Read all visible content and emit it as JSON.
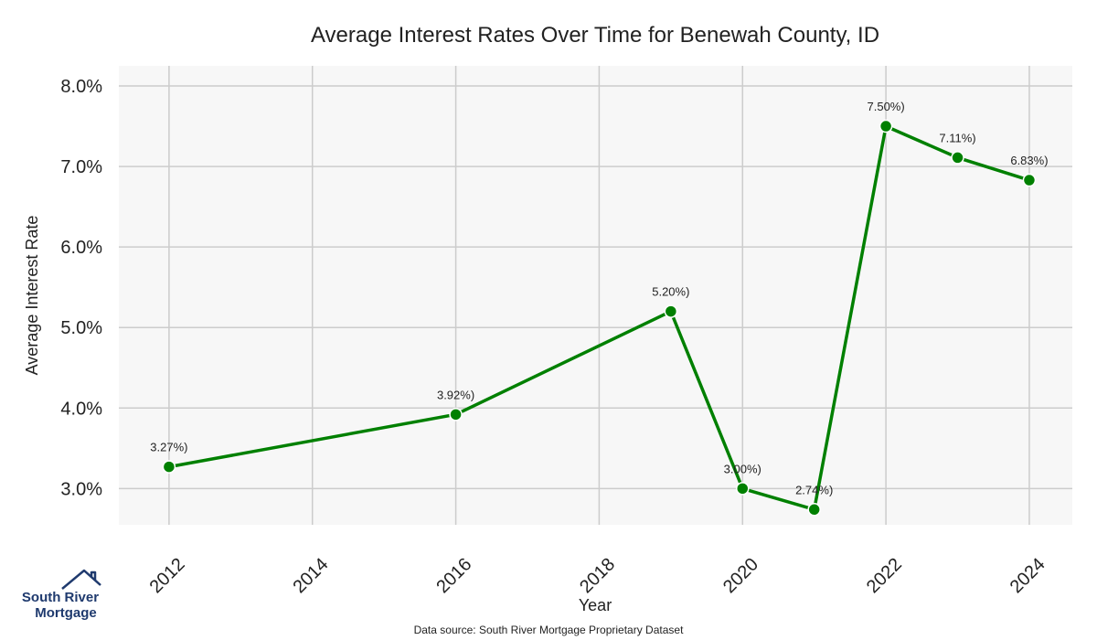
{
  "chart_data": {
    "type": "line",
    "title": "Average Interest Rates Over Time for Benewah County, ID",
    "xlabel": "Year",
    "ylabel": "Average Interest Rate",
    "xlim": [
      2011.3,
      2024.6
    ],
    "ylim": [
      2.55,
      8.25
    ],
    "x_ticks": [
      2012,
      2014,
      2016,
      2018,
      2020,
      2022,
      2024
    ],
    "y_ticks": [
      3.0,
      4.0,
      5.0,
      6.0,
      7.0,
      8.0
    ],
    "y_tick_labels": [
      "3.0%",
      "4.0%",
      "5.0%",
      "6.0%",
      "7.0%",
      "8.0%"
    ],
    "grid": true,
    "series_color": "#008000",
    "x": [
      2012,
      2016,
      2019,
      2020,
      2021,
      2022,
      2023,
      2024
    ],
    "y": [
      3.27,
      3.92,
      5.2,
      3.0,
      2.74,
      7.5,
      7.11,
      6.83
    ],
    "data_labels": [
      "3.27%)",
      "3.92%)",
      "5.20%)",
      "3.00%)",
      "2.74%)",
      "7.50%)",
      "7.11%)",
      "6.83%)"
    ]
  },
  "footer": {
    "source": "Data source: South River Mortgage Proprietary Dataset"
  },
  "logo": {
    "line1": "South River",
    "line2": "Mortgage",
    "color": "#1f3a6e"
  }
}
